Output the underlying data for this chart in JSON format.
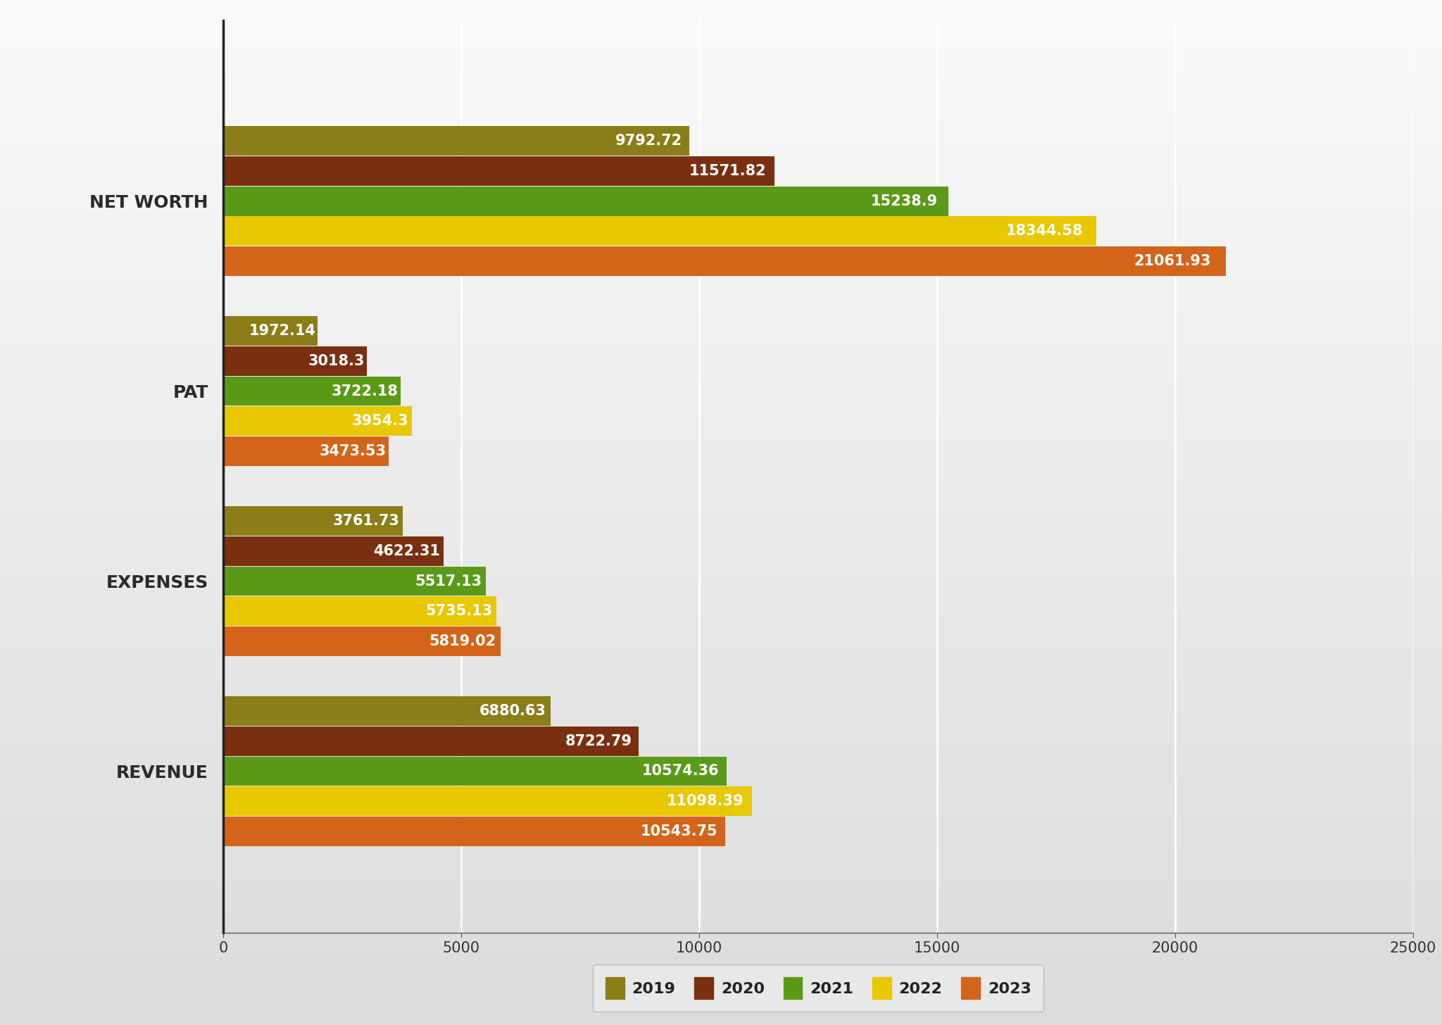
{
  "categories": [
    "NET WORTH",
    "PAT",
    "EXPENSES",
    "REVENUE"
  ],
  "years": [
    "2019",
    "2020",
    "2021",
    "2022",
    "2023"
  ],
  "colors": {
    "2019": "#8B7D18",
    "2020": "#7A3010",
    "2021": "#5A9A18",
    "2022": "#E8C800",
    "2023": "#D4641A"
  },
  "data": {
    "NET WORTH": [
      9792.72,
      11571.82,
      15238.9,
      18344.58,
      21061.93
    ],
    "PAT": [
      1972.14,
      3018.3,
      3722.18,
      3954.3,
      3473.53
    ],
    "EXPENSES": [
      3761.73,
      4622.31,
      5517.13,
      5735.13,
      5819.02
    ],
    "REVENUE": [
      6880.63,
      8722.79,
      10574.36,
      11098.39,
      10543.75
    ]
  },
  "xlim": [
    0,
    25000
  ],
  "xticks": [
    0,
    5000,
    10000,
    15000,
    20000,
    25000
  ],
  "bar_height": 0.155,
  "label_fontsize": 15,
  "tick_fontsize": 15,
  "ylabel_fontsize": 18,
  "legend_fontsize": 16,
  "grid_color": "#d8d8d8"
}
